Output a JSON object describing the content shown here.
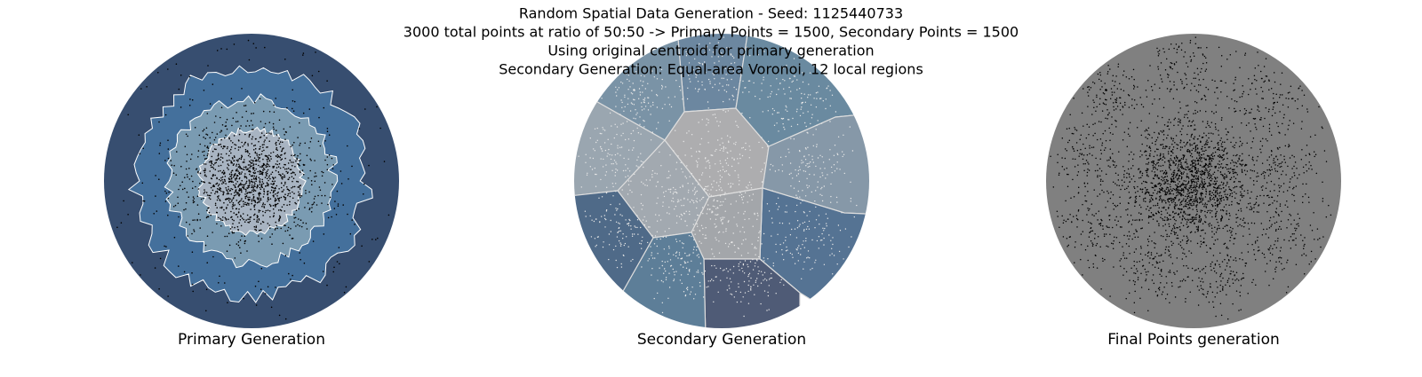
{
  "title": [
    "Random Spatial Data Generation - Seed: 1125440733",
    "3000 total points at ratio of  50:50 -> Primary Points = 1500, Secondary Points = 1500",
    "Using original centroid for primary generation",
    "Secondary Generation: Equal-area Voronoi, 12 local regions"
  ],
  "panels": [
    {
      "label": "Primary Generation"
    },
    {
      "label": "Secondary Generation"
    },
    {
      "label": "Final Points generation"
    }
  ]
}
